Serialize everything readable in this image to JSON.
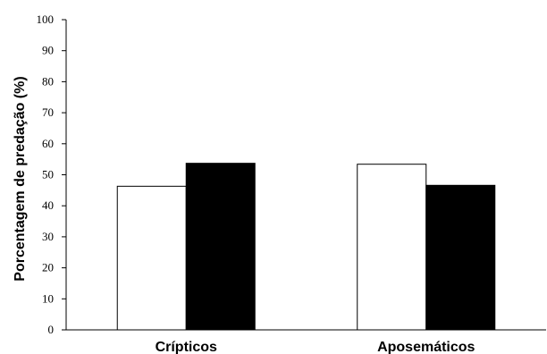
{
  "chart_data": {
    "type": "bar",
    "title": "",
    "xlabel": "",
    "ylabel": "Porcentagem de predação (%)",
    "ylim": [
      0,
      100
    ],
    "yticks": [
      0,
      10,
      20,
      30,
      40,
      50,
      60,
      70,
      80,
      90,
      100
    ],
    "categories": [
      "Crípticos",
      "Aposemáticos"
    ],
    "series": [
      {
        "values": [
          46.3,
          53.4
        ],
        "color": "#ffffff"
      },
      {
        "values": [
          53.7,
          46.6
        ],
        "color": "#000000"
      }
    ],
    "grid": false,
    "legend": "none"
  }
}
